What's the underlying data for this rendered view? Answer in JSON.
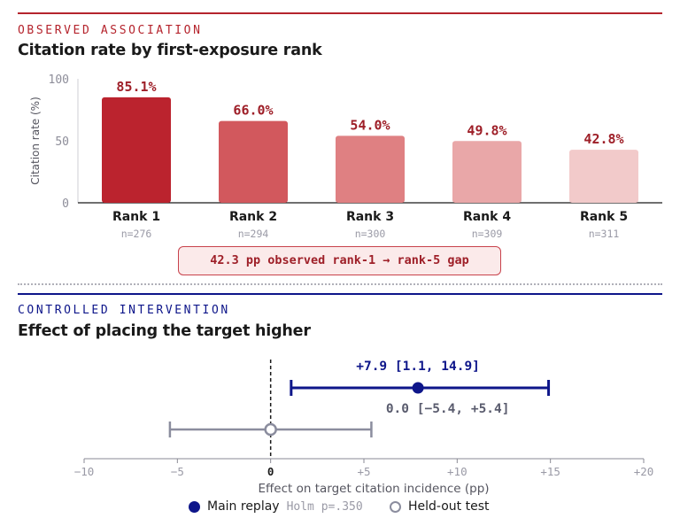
{
  "section_top": {
    "kicker": "OBSERVED ASSOCIATION",
    "title": "Citation rate by first-exposure rank",
    "gap_note": "42.3 pp observed rank-1 → rank-5 gap"
  },
  "section_bottom": {
    "kicker": "CONTROLLED INTERVENTION",
    "title": "Effect of placing the target higher"
  },
  "legend": {
    "main_label": "Main replay",
    "main_stat": "Holm p=.350",
    "held_label": "Held-out test"
  },
  "colors": {
    "red_accent": "#b5242d",
    "navy_accent": "#0e168a",
    "held_out_gray": "#8b8d9e",
    "bar_fills": [
      "#bb232e",
      "#d2585d",
      "#df8082",
      "#e9a7a8",
      "#f2caca"
    ]
  },
  "chart_data": [
    {
      "type": "bar",
      "title": "Citation rate by first-exposure rank",
      "ylabel": "Citation rate (%)",
      "ylim": [
        0,
        100
      ],
      "yticks": [
        0,
        50,
        100
      ],
      "categories": [
        "Rank 1",
        "Rank 2",
        "Rank 3",
        "Rank 4",
        "Rank 5"
      ],
      "values": [
        85.1,
        66.0,
        54.0,
        49.8,
        42.8
      ],
      "value_labels": [
        "85.1%",
        "66.0%",
        "54.0%",
        "49.8%",
        "42.8%"
      ],
      "sample_sizes": [
        "n=276",
        "n=294",
        "n=300",
        "n=309",
        "n=311"
      ],
      "grid": false
    },
    {
      "type": "scatter",
      "title": "Effect of placing the target higher",
      "xlabel": "Effect on target citation incidence (pp)",
      "xlim": [
        -10,
        20
      ],
      "xticks": [
        -10,
        -5,
        0,
        5,
        10,
        15,
        20
      ],
      "xtick_labels": [
        "−10",
        "−5",
        "0",
        "+5",
        "+10",
        "+15",
        "+20"
      ],
      "reference_line": 0,
      "series": [
        {
          "name": "Main replay",
          "estimate": 7.9,
          "ci": [
            1.1,
            14.9
          ],
          "label": "+7.9 [1.1, 14.9]"
        },
        {
          "name": "Held-out test",
          "estimate": 0.0,
          "ci": [
            -5.4,
            5.4
          ],
          "label": "0.0 [−5.4, +5.4]"
        }
      ],
      "legend": "bottom-center"
    }
  ]
}
